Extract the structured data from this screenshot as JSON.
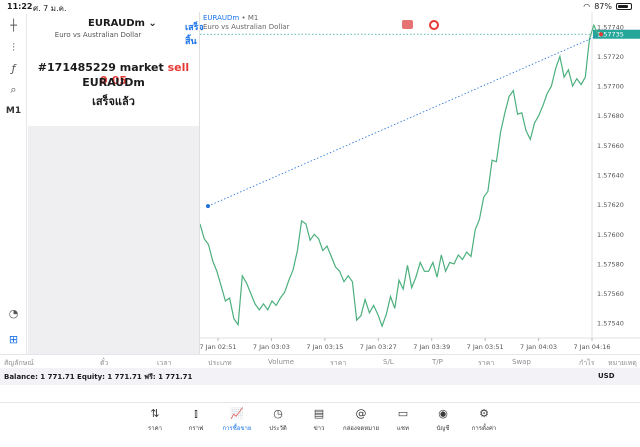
{
  "status": {
    "time": "11:22",
    "date": "ศ. 7 ม.ค.",
    "battery": "87%",
    "battery_level": 0.87
  },
  "trade_panel": {
    "symbol": "EURAUDm",
    "description": "Euro vs Australian Dollar",
    "done_label": "เสร็จสิ้น",
    "order_prefix": "#171485229 market",
    "order_action": "sell 0.05",
    "order_symbol": "EURAUDm",
    "order_status": "เสร็จแล้ว"
  },
  "chart": {
    "title_symbol": "EURAUDm",
    "title_timeframe": "• M1",
    "subtitle": "Euro vs Australian Dollar",
    "current_price_label": "1.57735"
  },
  "chart_data": {
    "type": "line",
    "x_tick_labels": [
      "7 Jan 02:51",
      "7 Jan 03:03",
      "7 Jan 03:15",
      "7 Jan 03:27",
      "7 Jan 03:39",
      "7 Jan 03:51",
      "7 Jan 04:03",
      "7 Jan 04:16"
    ],
    "y_tick_labels": [
      "1.57740",
      "1.57720",
      "1.57700",
      "1.57680",
      "1.57660",
      "1.57640",
      "1.57620",
      "1.57600",
      "1.57580",
      "1.57560",
      "1.57540"
    ],
    "ylim": [
      1.5753,
      1.5775
    ],
    "current_price": 1.57735,
    "series": [
      {
        "values": [
          1.57607,
          1.57597,
          1.57593,
          1.57582,
          1.57575,
          1.57565,
          1.57555,
          1.57557,
          1.57543,
          1.57539,
          1.57572,
          1.57567,
          1.5756,
          1.57553,
          1.57549,
          1.57553,
          1.57549,
          1.57555,
          1.57552,
          1.57557,
          1.57561,
          1.57569,
          1.57576,
          1.57589,
          1.57609,
          1.57607,
          1.57596,
          1.576,
          1.57597,
          1.57589,
          1.57592,
          1.57585,
          1.57578,
          1.57575,
          1.57568,
          1.57572,
          1.57568,
          1.57542,
          1.57545,
          1.57556,
          1.57547,
          1.57552,
          1.57546,
          1.57538,
          1.57546,
          1.57558,
          1.5755,
          1.57569,
          1.57563,
          1.57579,
          1.57564,
          1.57571,
          1.57581,
          1.57575,
          1.57575,
          1.57581,
          1.57571,
          1.57586,
          1.57575,
          1.57581,
          1.5758,
          1.57586,
          1.57583,
          1.57588,
          1.57585,
          1.57603,
          1.5761,
          1.57625,
          1.57629,
          1.5765,
          1.57649,
          1.57669,
          1.57682,
          1.57693,
          1.57697,
          1.57681,
          1.57682,
          1.5767,
          1.57664,
          1.57675,
          1.5768,
          1.57687,
          1.57695,
          1.577,
          1.57712,
          1.5772,
          1.57706,
          1.57711,
          1.577,
          1.57705,
          1.57701,
          1.57706,
          1.57732,
          1.57741,
          1.57735
        ]
      }
    ],
    "entry_line": {
      "start_price": 1.57619,
      "end_price": 1.57735
    },
    "grid": false
  },
  "columns": [
    "สัญลักษณ์",
    "ตั๋ว",
    "เวลา",
    "ประเภท",
    "Volume",
    "ราคา",
    "S/L",
    "T/P",
    "ราคา",
    "Swap",
    "กำไร",
    "หมายเหตุ"
  ],
  "balance": {
    "text": "Balance: 1 771.71  Equity: 1 771.71  ฟรี: 1 771.71",
    "currency": "USD"
  },
  "tabs": [
    {
      "label": "ราคา",
      "icon": "arrows-icon"
    },
    {
      "label": "กราฟ",
      "icon": "candles-icon"
    },
    {
      "label": "การซื้อขาย",
      "icon": "trade-chart-icon"
    },
    {
      "label": "ประวัติ",
      "icon": "history-icon"
    },
    {
      "label": "ข่าว",
      "icon": "news-icon"
    },
    {
      "label": "กล่องจดหมาย",
      "icon": "at-icon"
    },
    {
      "label": "แชท",
      "icon": "chat-icon"
    },
    {
      "label": "บัญชี",
      "icon": "account-icon"
    },
    {
      "label": "การตั้งค่า",
      "icon": "gear-icon"
    }
  ]
}
